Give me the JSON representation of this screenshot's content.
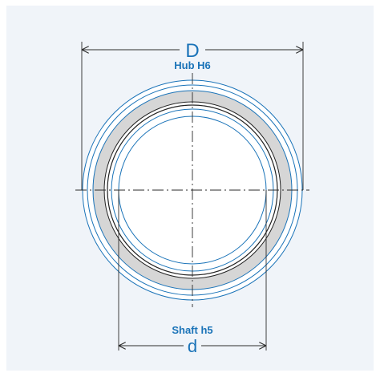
{
  "diagram": {
    "outer_diameter_symbol": "D",
    "hub_tolerance_label": "Hub H6",
    "inner_diameter_symbol": "d",
    "shaft_tolerance_label": "Shaft h5"
  },
  "colors": {
    "panel_background": "#f0f4f9",
    "page_background": "#ffffff",
    "accent_blue": "#1a73b8",
    "ring_gray_fill": "#d6d6d6",
    "outline_dark": "#222222",
    "dimension_line": "#2b2b2b"
  }
}
